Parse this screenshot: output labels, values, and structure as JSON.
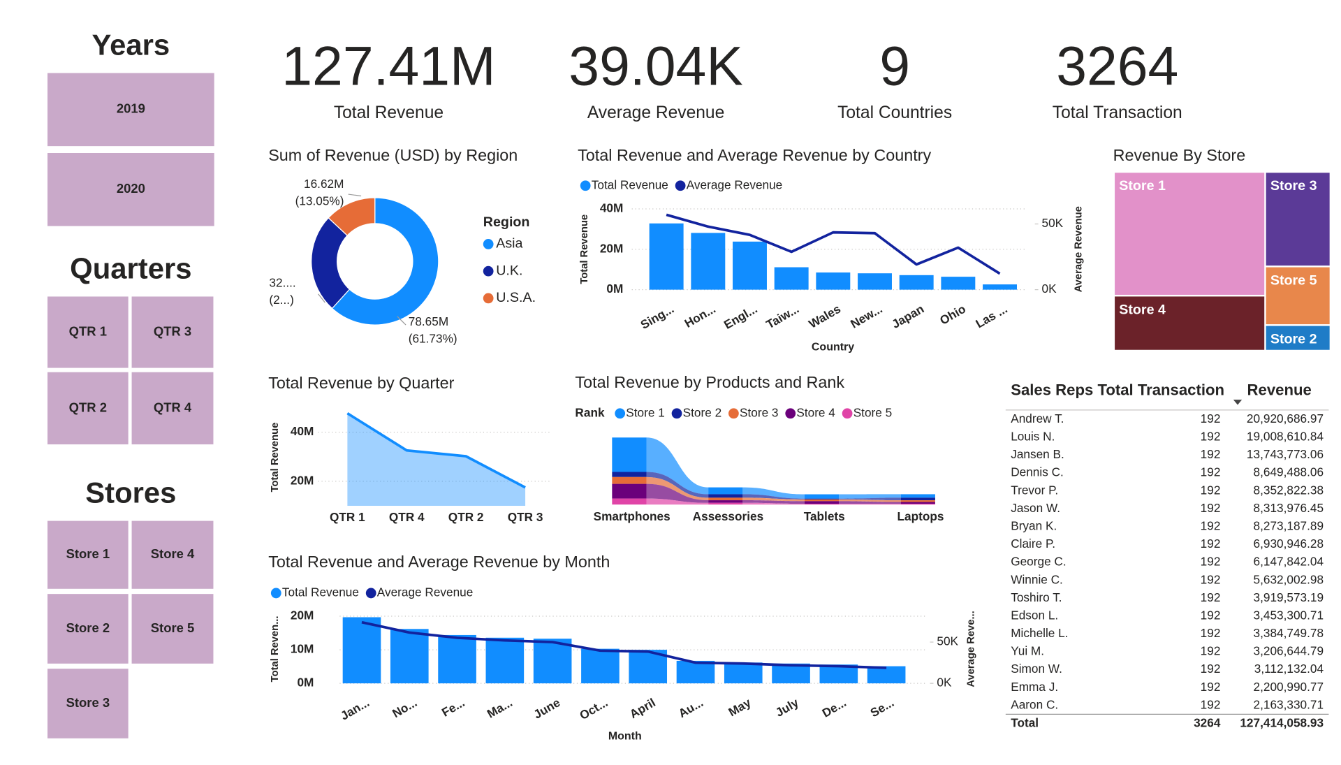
{
  "slicers": [
    {
      "title": "Years",
      "items": [
        "2019",
        "2020"
      ]
    },
    {
      "title": "Quarters",
      "items": [
        "QTR 1",
        "QTR 3",
        "QTR 2",
        "QTR 4"
      ]
    },
    {
      "title": "Stores",
      "items": [
        "Store 1",
        "Store 4",
        "Store 2",
        "Store 5",
        "Store 3"
      ]
    }
  ],
  "kpis": [
    {
      "value": "127.41M",
      "label": "Total Revenue"
    },
    {
      "value": "39.04K",
      "label": "Average Revenue"
    },
    {
      "value": "9",
      "label": "Total Countries"
    },
    {
      "value": "3264",
      "label": "Total Transaction"
    }
  ],
  "chart_data": [
    {
      "type": "donut",
      "title": "Sum of Revenue (USD) by Region",
      "legend_title": "Region",
      "categories": [
        "Asia",
        "U.K.",
        "U.S.A."
      ],
      "values": [
        78.65,
        32.14,
        16.62
      ],
      "value_labels": [
        "78.65M",
        "32....",
        "16.62M"
      ],
      "percent_labels": [
        "(61.73%)",
        "(2...)",
        "(13.05%)"
      ],
      "colors": [
        "#118DFF",
        "#12239E",
        "#E66C37"
      ]
    },
    {
      "type": "combo",
      "title": "Total Revenue and Average Revenue by Country",
      "categories": [
        "Sing...",
        "Hon...",
        "Engl...",
        "Taiw...",
        "Wales",
        "New...",
        "Japan",
        "Ohio",
        "Las ..."
      ],
      "series": [
        {
          "name": "Total Revenue",
          "color": "#118DFF",
          "values": [
            32.8,
            28.1,
            23.8,
            11.1,
            8.5,
            8.1,
            7.2,
            6.4,
            2.6
          ]
        },
        {
          "name": "Average Revenue",
          "color": "#12239E",
          "axis": "y2",
          "values": [
            57,
            48,
            41.7,
            28.8,
            43.6,
            43,
            19.2,
            32,
            12.2
          ]
        }
      ],
      "ylim": [
        0,
        40
      ],
      "yticks": [
        {
          "value": 0,
          "label": "0M"
        },
        {
          "value": 20,
          "label": "20M"
        },
        {
          "value": 40,
          "label": "40M"
        }
      ],
      "y2lim": [
        0,
        61.5
      ],
      "y2ticks": [
        {
          "value": 0,
          "label": "0K"
        },
        {
          "value": 50,
          "label": "50K"
        }
      ],
      "y_label": "Total Revenue",
      "y2_label": "Average Revenue",
      "x_label": "Country",
      "grid": true
    },
    {
      "type": "treemap",
      "title": "Revenue By Store",
      "categories": [
        "Store 1",
        "Store 4",
        "Store 3",
        "Store 5",
        "Store 2"
      ],
      "values": [
        61.6,
        27.4,
        20.3,
        12.6,
        5.5
      ],
      "colors": [
        "#E291C9",
        "#6B2229",
        "#5B3A97",
        "#E8874B",
        "#1F7CC7"
      ]
    },
    {
      "type": "area",
      "title": "Total Revenue by Quarter",
      "categories": [
        "QTR 1",
        "QTR 4",
        "QTR 2",
        "QTR 3"
      ],
      "values": [
        47.7,
        32.6,
        30.2,
        17.5
      ],
      "color": "#118DFF",
      "ylim": [
        10,
        48
      ],
      "yticks": [
        {
          "value": 20,
          "label": "20M"
        },
        {
          "value": 40,
          "label": "40M"
        }
      ],
      "y_label": "Total Revenue",
      "grid": true
    },
    {
      "type": "ribbon",
      "title": "Total Revenue by Products and Rank",
      "legend_title": "Rank",
      "categories": [
        "Smartphones",
        "Assessories",
        "Tablets",
        "Laptops"
      ],
      "series": [
        {
          "name": "Store 1",
          "color": "#118DFF",
          "values": [
            41.6,
            8.3,
            5.2,
            4.2
          ]
        },
        {
          "name": "Store 2",
          "color": "#12239E",
          "values": [
            6.2,
            4.2,
            1,
            3.1
          ]
        },
        {
          "name": "Store 3",
          "color": "#E66C37",
          "values": [
            8.3,
            3.1,
            2.1,
            2.1
          ]
        },
        {
          "name": "Store 4",
          "color": "#6B007B",
          "values": [
            17.7,
            3.1,
            3.1,
            2.1
          ]
        },
        {
          "name": "Store 5",
          "color": "#E044A7",
          "values": [
            7.3,
            2.1,
            1,
            1
          ]
        }
      ]
    },
    {
      "type": "combo",
      "title": "Total Revenue and Average Revenue by Month",
      "categories": [
        "Jan...",
        "No...",
        "Fe...",
        "Ma...",
        "June",
        "Oct...",
        "April",
        "Au...",
        "May",
        "July",
        "De...",
        "Se..."
      ],
      "series": [
        {
          "name": "Total Revenue",
          "color": "#118DFF",
          "values": [
            19.7,
            16.2,
            14.4,
            13.6,
            13.3,
            10.3,
            10,
            6.7,
            6.2,
            5.9,
            5.6,
            5.1
          ]
        },
        {
          "name": "Average Revenue",
          "color": "#12239E",
          "axis": "y2",
          "values": [
            74,
            61.5,
            55.2,
            52,
            50,
            39.6,
            38.5,
            25,
            24,
            21.9,
            20.8,
            18.8
          ]
        }
      ],
      "ylim": [
        0,
        21
      ],
      "yticks": [
        {
          "value": 0,
          "label": "0M"
        },
        {
          "value": 10,
          "label": "10M"
        },
        {
          "value": 20,
          "label": "20M"
        }
      ],
      "y2lim": [
        0,
        85.4
      ],
      "y2ticks": [
        {
          "value": 0,
          "label": "0K"
        },
        {
          "value": 50,
          "label": "50K"
        }
      ],
      "y_label": "Total Reven...",
      "y2_label": "Average Reve...",
      "x_label": "Month",
      "grid": true
    }
  ],
  "table": {
    "columns": [
      "Sales Reps",
      "Total Transaction",
      "Revenue"
    ],
    "rows": [
      [
        "Andrew T.",
        "192",
        "20,920,686.97"
      ],
      [
        "Louis N.",
        "192",
        "19,008,610.84"
      ],
      [
        "Jansen B.",
        "192",
        "13,743,773.06"
      ],
      [
        "Dennis C.",
        "192",
        "8,649,488.06"
      ],
      [
        "Trevor P.",
        "192",
        "8,352,822.38"
      ],
      [
        "Jason W.",
        "192",
        "8,313,976.45"
      ],
      [
        "Bryan K.",
        "192",
        "8,273,187.89"
      ],
      [
        "Claire P.",
        "192",
        "6,930,946.28"
      ],
      [
        "George C.",
        "192",
        "6,147,842.04"
      ],
      [
        "Winnie C.",
        "192",
        "5,632,002.98"
      ],
      [
        "Toshiro T.",
        "192",
        "3,919,573.19"
      ],
      [
        "Edson L.",
        "192",
        "3,453,300.71"
      ],
      [
        "Michelle L.",
        "192",
        "3,384,749.78"
      ],
      [
        "Yui M.",
        "192",
        "3,206,644.79"
      ],
      [
        "Simon W.",
        "192",
        "3,112,132.04"
      ],
      [
        "Emma J.",
        "192",
        "2,200,990.77"
      ],
      [
        "Aaron C.",
        "192",
        "2,163,330.71"
      ]
    ],
    "total": [
      "Total",
      "3264",
      "127,414,058.93"
    ]
  }
}
